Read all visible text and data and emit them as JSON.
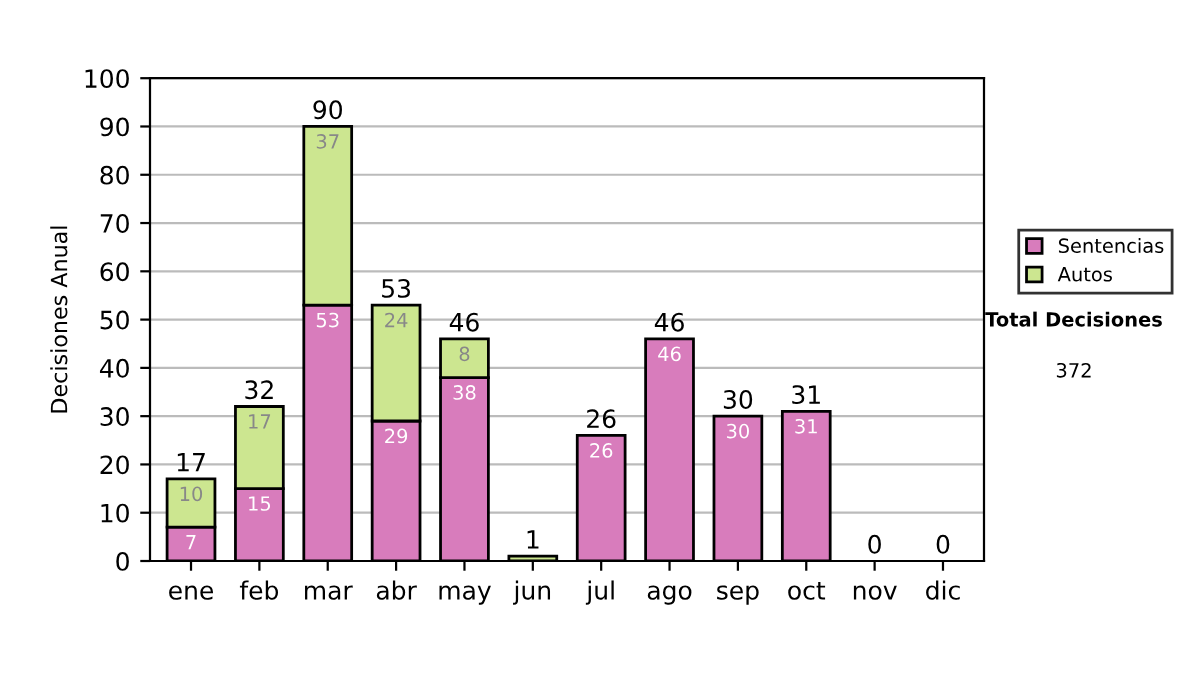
{
  "chart_data": {
    "type": "bar",
    "stacked": true,
    "ylabel": "Decisiones Anual",
    "categories": [
      "ene",
      "feb",
      "mar",
      "abr",
      "may",
      "jun",
      "jul",
      "ago",
      "sep",
      "oct",
      "nov",
      "dic"
    ],
    "series": [
      {
        "name": "Sentencias",
        "color": "#d87cbc",
        "values": [
          7,
          15,
          53,
          29,
          38,
          0,
          26,
          46,
          30,
          31,
          0,
          0
        ],
        "value_labels": [
          "7",
          "15",
          "53",
          "29",
          "38",
          null,
          "26",
          "46",
          "30",
          "31",
          null,
          null
        ]
      },
      {
        "name": "Autos",
        "color": "#cce690",
        "values": [
          10,
          17,
          37,
          24,
          8,
          1,
          0,
          0,
          0,
          0,
          0,
          0
        ],
        "value_labels": [
          "10",
          "17",
          "37",
          "24",
          "8",
          null,
          null,
          null,
          null,
          null,
          null,
          null
        ]
      }
    ],
    "totals": [
      "17",
      "32",
      "90",
      "53",
      "46",
      "1",
      "26",
      "46",
      "30",
      "31",
      "0",
      "0"
    ],
    "ylim": [
      0,
      100
    ],
    "yticks": [
      0,
      10,
      20,
      30,
      40,
      50,
      60,
      70,
      80,
      90,
      100
    ],
    "grid": "y",
    "legend": "right",
    "annotations": [
      "Total Decisiones",
      "372"
    ]
  }
}
